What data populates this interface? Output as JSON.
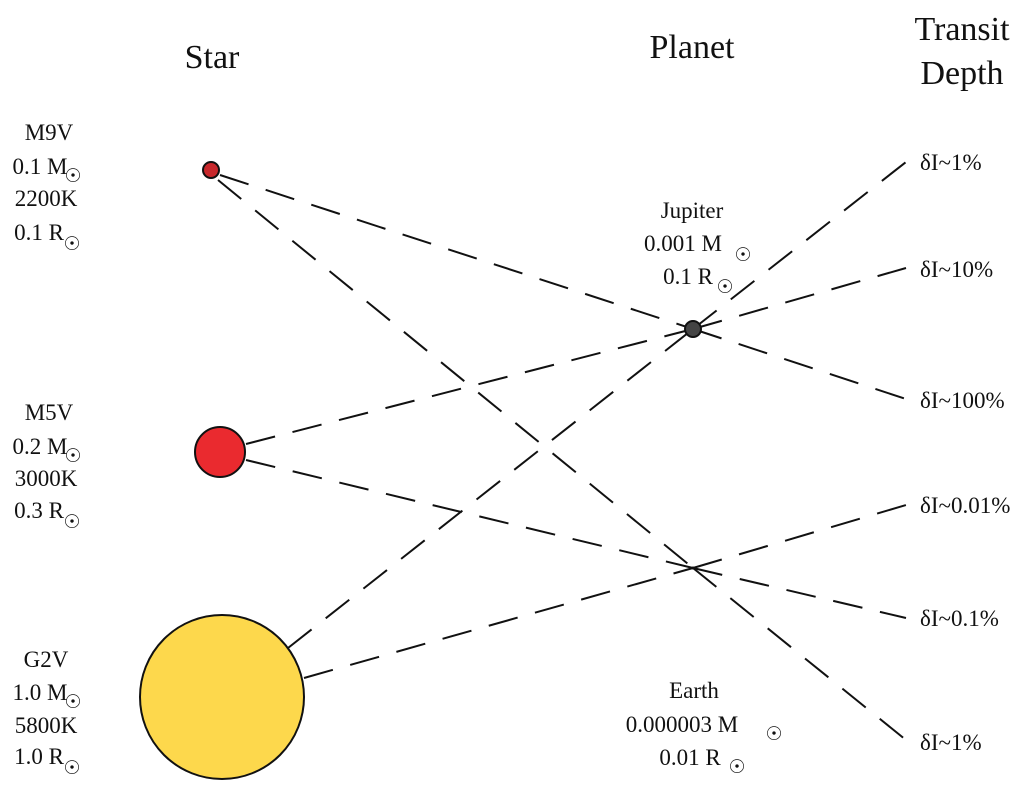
{
  "headings": {
    "star": "Star",
    "planet": "Planet",
    "transit_line1": "Transit",
    "transit_line2": "Depth"
  },
  "stars": [
    {
      "type": "M9V",
      "mass": "0.1 M",
      "temperature": "2200K",
      "radius": "0.1 R",
      "color": "#c8282c"
    },
    {
      "type": "M5V",
      "mass": "0.2 M",
      "temperature": "3000K",
      "radius": "0.3 R",
      "color": "#ea2a2f"
    },
    {
      "type": "G2V",
      "mass": "1.0 M",
      "temperature": "5800K",
      "radius": "1.0 R",
      "color": "#fdd84c"
    }
  ],
  "planets": [
    {
      "name": "Jupiter",
      "mass": "0.001 M",
      "radius": "0.1 R",
      "color": "#444444"
    },
    {
      "name": "Earth",
      "mass": "0.000003 M",
      "radius": "0.01 R",
      "color": "#111111"
    }
  ],
  "transit_depths": [
    "δI~1%",
    "δI~10%",
    "δI~100%",
    "δI~0.01%",
    "δI~0.1%",
    "δI~1%"
  ],
  "sun_symbol": "☉"
}
